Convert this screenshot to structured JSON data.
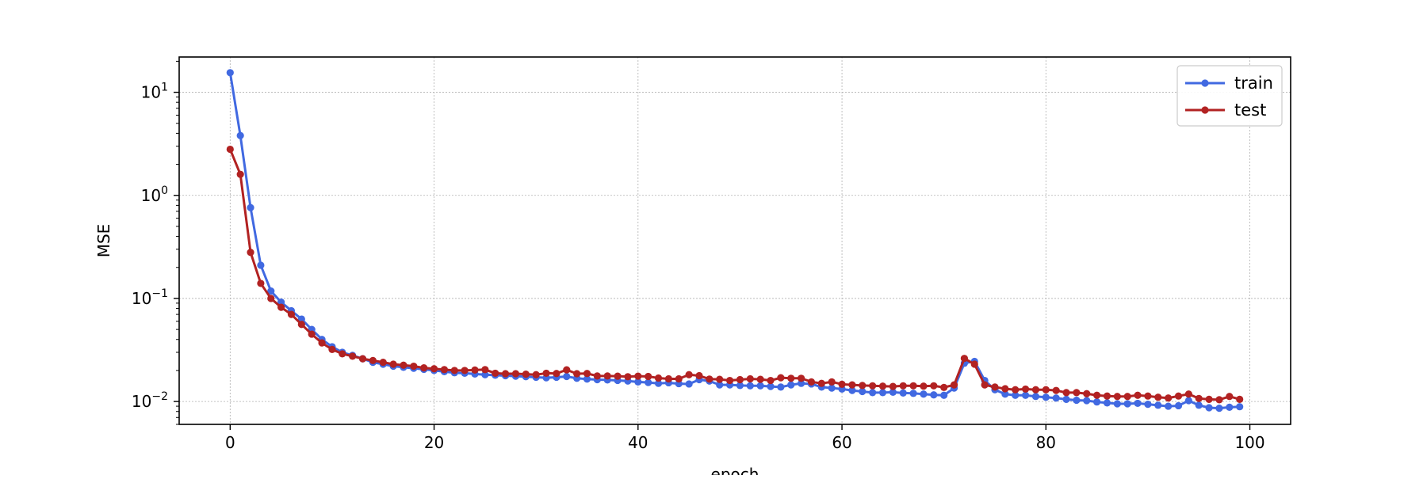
{
  "chart_data": {
    "type": "line",
    "title": "",
    "xlabel": "epoch",
    "ylabel": "MSE",
    "yscale": "log",
    "xlim": [
      -5,
      104
    ],
    "ylim": [
      0.006,
      22
    ],
    "xticks": [
      0,
      20,
      40,
      60,
      80,
      100
    ],
    "xtick_labels": [
      "0",
      "20",
      "40",
      "60",
      "80",
      "100"
    ],
    "yticks": [
      0.01,
      0.1,
      1,
      10
    ],
    "ytick_labels": [
      {
        "base": "10",
        "exp": "−2"
      },
      {
        "base": "10",
        "exp": "−1"
      },
      {
        "base": "10",
        "exp": "0"
      },
      {
        "base": "10",
        "exp": "1"
      }
    ],
    "grid": true,
    "legend_position": "top-right",
    "x": [
      0,
      1,
      2,
      3,
      4,
      5,
      6,
      7,
      8,
      9,
      10,
      11,
      12,
      13,
      14,
      15,
      16,
      17,
      18,
      19,
      20,
      21,
      22,
      23,
      24,
      25,
      26,
      27,
      28,
      29,
      30,
      31,
      32,
      33,
      34,
      35,
      36,
      37,
      38,
      39,
      40,
      41,
      42,
      43,
      44,
      45,
      46,
      47,
      48,
      49,
      50,
      51,
      52,
      53,
      54,
      55,
      56,
      57,
      58,
      59,
      60,
      61,
      62,
      63,
      64,
      65,
      66,
      67,
      68,
      69,
      70,
      71,
      72,
      73,
      74,
      75,
      76,
      77,
      78,
      79,
      80,
      81,
      82,
      83,
      84,
      85,
      86,
      87,
      88,
      89,
      90,
      91,
      92,
      93,
      94,
      95,
      96,
      97,
      98,
      99
    ],
    "series": [
      {
        "name": "train",
        "color": "#4169e1",
        "values": [
          15.5,
          3.8,
          0.76,
          0.21,
          0.118,
          0.092,
          0.076,
          0.063,
          0.05,
          0.04,
          0.034,
          0.03,
          0.028,
          0.026,
          0.024,
          0.023,
          0.022,
          0.0215,
          0.021,
          0.0205,
          0.02,
          0.0195,
          0.019,
          0.0188,
          0.0185,
          0.0182,
          0.018,
          0.0178,
          0.0176,
          0.0174,
          0.0172,
          0.017,
          0.0172,
          0.0175,
          0.0168,
          0.0165,
          0.0163,
          0.0162,
          0.016,
          0.0158,
          0.0155,
          0.0153,
          0.015,
          0.0152,
          0.0149,
          0.0148,
          0.0163,
          0.0158,
          0.0145,
          0.0145,
          0.0143,
          0.0142,
          0.0142,
          0.014,
          0.0138,
          0.0145,
          0.015,
          0.0148,
          0.0138,
          0.0135,
          0.0132,
          0.0128,
          0.0125,
          0.0122,
          0.0122,
          0.0123,
          0.0121,
          0.012,
          0.0118,
          0.0116,
          0.0115,
          0.0135,
          0.0235,
          0.0245,
          0.016,
          0.013,
          0.0118,
          0.0115,
          0.0115,
          0.0112,
          0.011,
          0.0108,
          0.0105,
          0.0103,
          0.0102,
          0.0099,
          0.0097,
          0.0095,
          0.0095,
          0.0096,
          0.0094,
          0.0092,
          0.009,
          0.0091,
          0.0102,
          0.0092,
          0.0087,
          0.0086,
          0.0088,
          0.0089
        ]
      },
      {
        "name": "test",
        "color": "#b22222",
        "values": [
          2.8,
          1.6,
          0.28,
          0.14,
          0.1,
          0.082,
          0.07,
          0.056,
          0.045,
          0.037,
          0.032,
          0.029,
          0.0275,
          0.026,
          0.025,
          0.024,
          0.023,
          0.0225,
          0.022,
          0.0212,
          0.0208,
          0.0204,
          0.02,
          0.02,
          0.0202,
          0.0204,
          0.0188,
          0.0186,
          0.0186,
          0.0184,
          0.0182,
          0.0188,
          0.0187,
          0.0203,
          0.0186,
          0.0187,
          0.0177,
          0.0177,
          0.0176,
          0.0174,
          0.0176,
          0.0175,
          0.0169,
          0.0166,
          0.0166,
          0.0182,
          0.0178,
          0.0165,
          0.0164,
          0.016,
          0.0163,
          0.0166,
          0.0164,
          0.016,
          0.017,
          0.0168,
          0.0168,
          0.0155,
          0.015,
          0.0155,
          0.0147,
          0.0145,
          0.0143,
          0.0142,
          0.0141,
          0.014,
          0.0142,
          0.0142,
          0.0141,
          0.0142,
          0.0137,
          0.0145,
          0.0262,
          0.023,
          0.0145,
          0.0138,
          0.0133,
          0.013,
          0.0132,
          0.013,
          0.013,
          0.0128,
          0.0122,
          0.0122,
          0.0119,
          0.0115,
          0.0113,
          0.0112,
          0.0112,
          0.0115,
          0.0113,
          0.011,
          0.0108,
          0.0113,
          0.0118,
          0.0107,
          0.0105,
          0.0104,
          0.0112,
          0.0105
        ]
      }
    ]
  }
}
